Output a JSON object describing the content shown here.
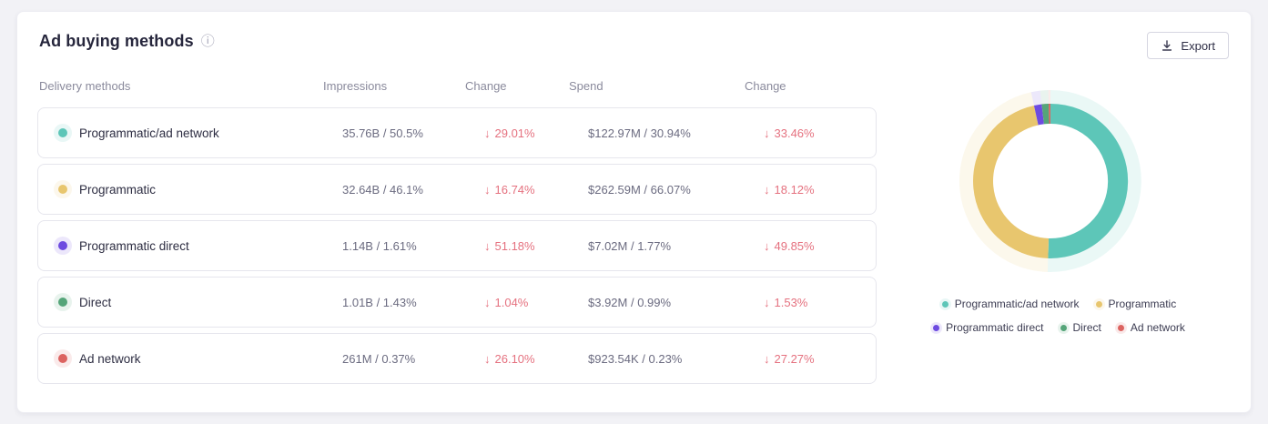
{
  "panel": {
    "title": "Ad buying methods",
    "export_label": "Export"
  },
  "icons": {
    "info": "ⓘ",
    "down_arrow": "↓"
  },
  "table": {
    "headers": [
      "Delivery methods",
      "Impressions",
      "Change",
      "Spend",
      "Change"
    ],
    "rows": [
      {
        "label": "Programmatic/ad network",
        "color": "#5dc6b8",
        "impressions": "35.76B / 50.5%",
        "impressions_change": "29.01%",
        "spend": "$122.97M / 30.94%",
        "spend_change": "33.46%"
      },
      {
        "label": "Programmatic",
        "color": "#e8c66e",
        "impressions": "32.64B / 46.1%",
        "impressions_change": "16.74%",
        "spend": "$262.59M / 66.07%",
        "spend_change": "18.12%"
      },
      {
        "label": "Programmatic direct",
        "color": "#6d4be0",
        "impressions": "1.14B / 1.61%",
        "impressions_change": "51.18%",
        "spend": "$7.02M / 1.77%",
        "spend_change": "49.85%"
      },
      {
        "label": "Direct",
        "color": "#55a579",
        "impressions": "1.01B / 1.43%",
        "impressions_change": "1.04%",
        "spend": "$3.92M / 0.99%",
        "spend_change": "1.53%"
      },
      {
        "label": "Ad network",
        "color": "#dc6360",
        "impressions": "261M / 0.37%",
        "impressions_change": "26.10%",
        "spend": "$923.54K / 0.23%",
        "spend_change": "27.27%"
      }
    ]
  },
  "chart_data": {
    "type": "pie",
    "subtype": "donut",
    "title": "",
    "categories": [
      "Programmatic/ad network",
      "Programmatic",
      "Programmatic direct",
      "Direct",
      "Ad network"
    ],
    "values": [
      50.5,
      46.1,
      1.61,
      1.43,
      0.37
    ],
    "unit": "%",
    "colors": [
      "#5dc6b8",
      "#e8c66e",
      "#6d4be0",
      "#55a579",
      "#dc6360"
    ],
    "start_angle_deg": 0,
    "direction": "clockwise",
    "inner_radius_ratio": 0.74,
    "halo_ring": true,
    "legend_position": "bottom"
  },
  "colors": {
    "change_negative": "#e5717f",
    "panel_bg": "#ffffff",
    "page_bg": "#f2f2f6"
  }
}
